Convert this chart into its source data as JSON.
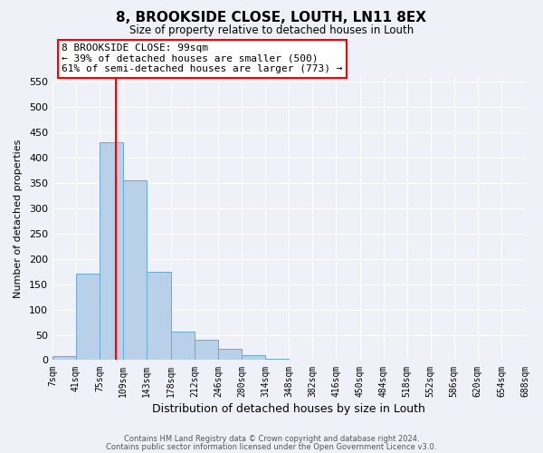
{
  "title": "8, BROOKSIDE CLOSE, LOUTH, LN11 8EX",
  "subtitle": "Size of property relative to detached houses in Louth",
  "xlabel": "Distribution of detached houses by size in Louth",
  "ylabel": "Number of detached properties",
  "bin_edges": [
    7,
    41,
    75,
    109,
    143,
    178,
    212,
    246,
    280,
    314,
    348,
    382,
    416,
    450,
    484,
    518,
    552,
    586,
    620,
    654,
    688
  ],
  "bin_labels": [
    "7sqm",
    "41sqm",
    "75sqm",
    "109sqm",
    "143sqm",
    "178sqm",
    "212sqm",
    "246sqm",
    "280sqm",
    "314sqm",
    "348sqm",
    "382sqm",
    "416sqm",
    "450sqm",
    "484sqm",
    "518sqm",
    "552sqm",
    "586sqm",
    "620sqm",
    "654sqm",
    "688sqm"
  ],
  "counts": [
    8,
    170,
    430,
    355,
    175,
    57,
    40,
    22,
    10,
    2,
    0,
    0,
    0,
    1,
    0,
    0,
    0,
    0,
    1,
    0
  ],
  "bar_color": "#b8d0e8",
  "bar_edge_color": "#6aaad4",
  "vline_x": 99,
  "vline_color": "red",
  "annotation_line1": "8 BROOKSIDE CLOSE: 99sqm",
  "annotation_line2": "← 39% of detached houses are smaller (500)",
  "annotation_line3": "61% of semi-detached houses are larger (773) →",
  "ylim": [
    0,
    560
  ],
  "yticks": [
    0,
    50,
    100,
    150,
    200,
    250,
    300,
    350,
    400,
    450,
    500,
    550
  ],
  "footer_line1": "Contains HM Land Registry data © Crown copyright and database right 2024.",
  "footer_line2": "Contains public sector information licensed under the Open Government Licence v3.0.",
  "bg_color": "#eef2f8",
  "grid_color": "#ffffff"
}
